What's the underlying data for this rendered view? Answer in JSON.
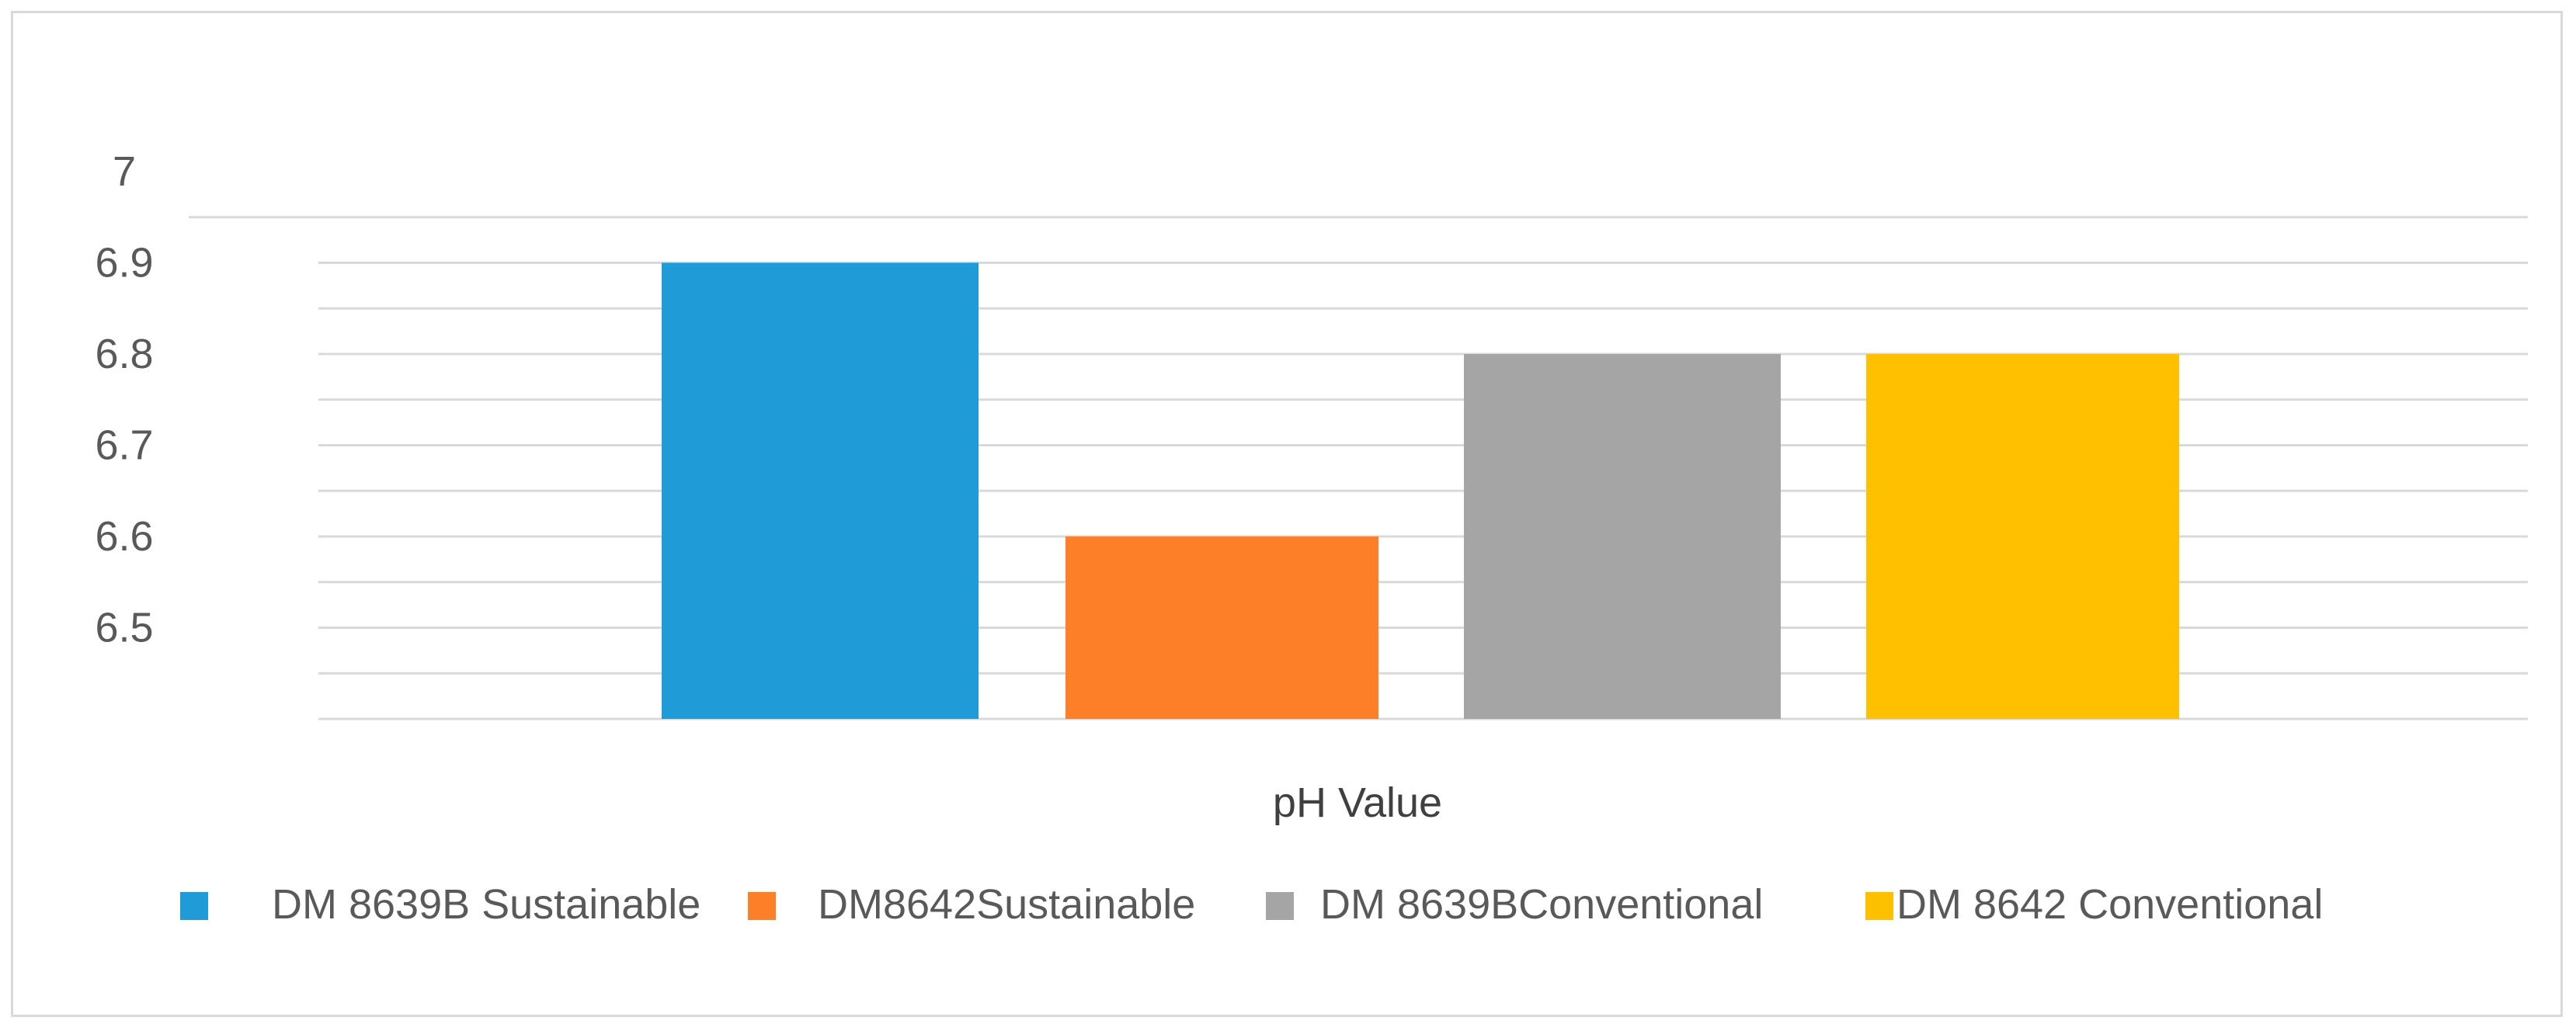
{
  "chart_data": {
    "type": "bar",
    "xlabel": "pH Value",
    "ylabel": "",
    "title": "",
    "ylim": [
      6.4,
      7.0
    ],
    "y_ticks": [
      {
        "value": 7.0,
        "label": "7"
      },
      {
        "value": 6.9,
        "label": "6.9"
      },
      {
        "value": 6.8,
        "label": "6.8"
      },
      {
        "value": 6.7,
        "label": "6.7"
      },
      {
        "value": 6.6,
        "label": "6.6"
      },
      {
        "value": 6.5,
        "label": "6.5"
      }
    ],
    "grid": true,
    "legend_position": "bottom",
    "series": [
      {
        "name": "DM 8639B Sustainable",
        "value": 6.9,
        "color": "#1f9bd7"
      },
      {
        "name": "DM8642Sustainable",
        "value": 6.6,
        "color": "#fd7f28"
      },
      {
        "name": "DM 8639BConventional",
        "value": 6.8,
        "color": "#a5a5a5"
      },
      {
        "name": "DM 8642 Conventional",
        "value": 6.8,
        "color": "#ffc000"
      }
    ]
  }
}
